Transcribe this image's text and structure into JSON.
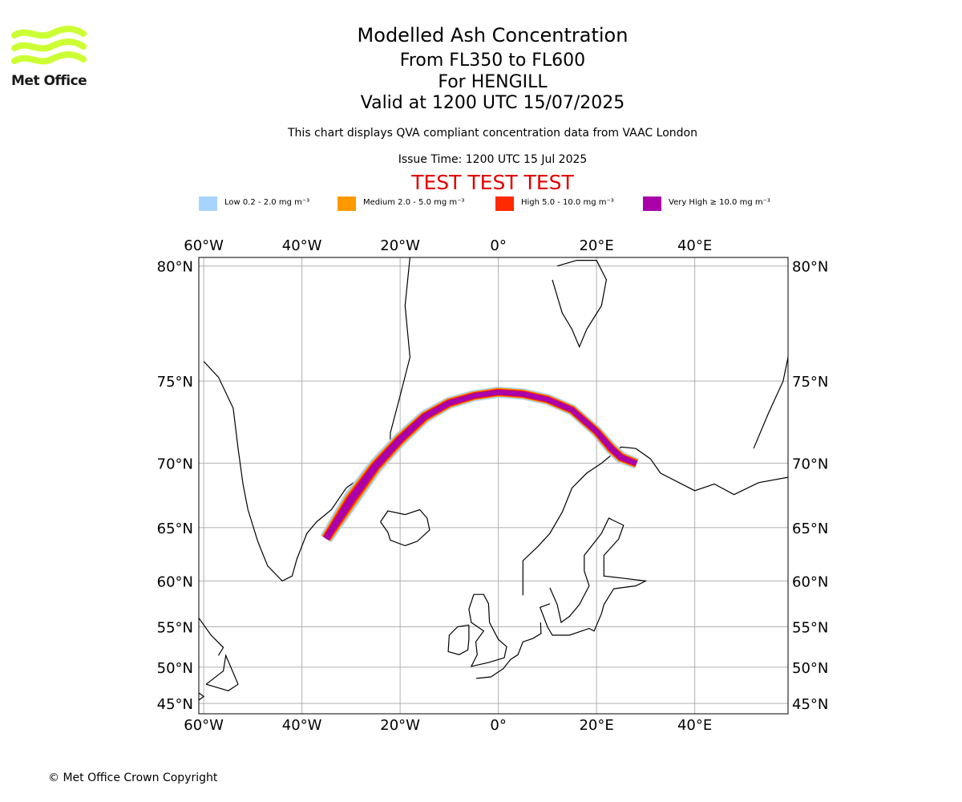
{
  "brand": {
    "name": "Met Office",
    "logo_icon": "met-office-wave-logo-icon",
    "logo_color": "#ccff33"
  },
  "header": {
    "title": "Modelled Ash Concentration",
    "levels": "From FL350 to FL600",
    "volcano": "For HENGILL",
    "valid": "Valid at 1200 UTC 15/07/2025",
    "note": "This chart displays QVA compliant concentration data from VAAC London",
    "issue_time": "Issue Time: 1200 UTC 15 Jul 2025",
    "warning": "TEST TEST TEST",
    "warning_color": "#e20000"
  },
  "legend": {
    "items": [
      {
        "label": "Low 0.2 - 2.0 mg m⁻³",
        "color": "#a6d4ff"
      },
      {
        "label": "Medium 2.0 - 5.0 mg m⁻³",
        "color": "#ff9900"
      },
      {
        "label": "High 5.0 - 10.0 mg m⁻³",
        "color": "#ff2a00"
      },
      {
        "label": "Very High ≥ 10.0 mg m⁻³",
        "color": "#aa00aa"
      }
    ]
  },
  "map": {
    "lon_range": [
      -61,
      59
    ],
    "lat_range": [
      43.5,
      80.3
    ],
    "lon_ticks": [
      {
        "value": -60,
        "label": "60°W"
      },
      {
        "value": -40,
        "label": "40°W"
      },
      {
        "value": -20,
        "label": "20°W"
      },
      {
        "value": 0,
        "label": "0°"
      },
      {
        "value": 20,
        "label": "20°E"
      },
      {
        "value": 40,
        "label": "40°E"
      }
    ],
    "lat_ticks": [
      {
        "value": 80,
        "label": "80°N"
      },
      {
        "value": 75,
        "label": "75°N"
      },
      {
        "value": 70,
        "label": "70°N"
      },
      {
        "value": 65,
        "label": "65°N"
      },
      {
        "value": 60,
        "label": "60°N"
      },
      {
        "value": 55,
        "label": "55°N"
      },
      {
        "value": 50,
        "label": "50°N"
      },
      {
        "value": 45,
        "label": "45°N"
      }
    ],
    "grid": true,
    "ash_plume_path": [
      [
        -35,
        64.1
      ],
      [
        -30,
        67.3
      ],
      [
        -25,
        69.8
      ],
      [
        -20,
        71.6
      ],
      [
        -15,
        73.0
      ],
      [
        -10,
        73.8
      ],
      [
        -5,
        74.2
      ],
      [
        0,
        74.4
      ],
      [
        5,
        74.3
      ],
      [
        10,
        74.0
      ],
      [
        15,
        73.4
      ],
      [
        20,
        72.1
      ],
      [
        23,
        71.0
      ],
      [
        25,
        70.4
      ],
      [
        28,
        70.0
      ]
    ],
    "ash_plume_band_width_deg": [
      2.2,
      3.0,
      2.6,
      2.4,
      2.2,
      2.0,
      1.8,
      1.8,
      1.8,
      1.8,
      1.8,
      1.8,
      2.0,
      2.0,
      1.8
    ],
    "ash_layers": [
      "Low",
      "Medium",
      "High",
      "Very High"
    ]
  },
  "footer": {
    "copyright": "© Met Office Crown Copyright"
  }
}
